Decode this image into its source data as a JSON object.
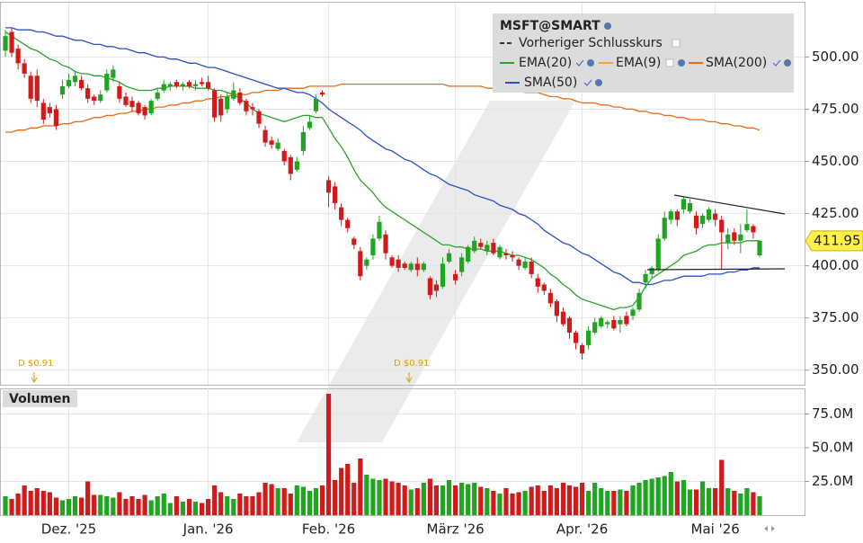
{
  "chart_data": {
    "type": "candlestick",
    "legend_title": "MSFT@SMART",
    "up_color": "#1fa51f",
    "down_color": "#cf1b1b",
    "legend_items": [
      {
        "name": "Vorheriger Schlusskurs",
        "color": "#333333"
      },
      {
        "name": "EMA(9)",
        "color": "#f2a43a"
      }
    ],
    "annotations": [
      "D $0.91",
      "D $0.91"
    ],
    "categories": [
      null,
      null,
      null,
      null,
      null,
      null,
      null,
      null,
      null,
      null,
      "Dez. '25",
      null,
      null,
      null,
      null,
      null,
      null,
      null,
      null,
      null,
      null,
      null,
      null,
      null,
      null,
      null,
      null,
      null,
      null,
      null,
      null,
      null,
      "Jan. '26",
      null,
      null,
      null,
      null,
      null,
      null,
      null,
      null,
      null,
      null,
      null,
      null,
      null,
      null,
      null,
      null,
      null,
      null,
      "Feb. '26",
      null,
      null,
      null,
      null,
      null,
      null,
      null,
      null,
      null,
      null,
      null,
      null,
      null,
      null,
      null,
      null,
      null,
      null,
      null,
      "März '26",
      null,
      null,
      null,
      null,
      null,
      null,
      null,
      null,
      null,
      null,
      null,
      null,
      null,
      null,
      null,
      null,
      null,
      null,
      null,
      "Apr. '26",
      null,
      null,
      null,
      null,
      null,
      null,
      null,
      null,
      null,
      null,
      null,
      null,
      null,
      null,
      null,
      null,
      null,
      null,
      null,
      null,
      "Mai '26",
      null,
      null,
      null,
      null,
      null,
      null,
      null
    ],
    "open": [
      503,
      512,
      504,
      497,
      491,
      491,
      478,
      476,
      475,
      482,
      486,
      488,
      489,
      485,
      481,
      479,
      484,
      490,
      486,
      481,
      479,
      478,
      476,
      473,
      480,
      484,
      486,
      488,
      486,
      488,
      486,
      488,
      488,
      484,
      480,
      475,
      480,
      483,
      479,
      476,
      474,
      465,
      460,
      456,
      455,
      452,
      446,
      455,
      466,
      474,
      483,
      441,
      438,
      428,
      422,
      413,
      407,
      400,
      405,
      413,
      415,
      404,
      403,
      401,
      398,
      401,
      398,
      394,
      391,
      390,
      402,
      396,
      397,
      402,
      407,
      411,
      407,
      411,
      404,
      406,
      405,
      403,
      399,
      402,
      394,
      391,
      387,
      383,
      378,
      375,
      368,
      362,
      362,
      368,
      371,
      372,
      374,
      372,
      376,
      376,
      379,
      392,
      396,
      398,
      413,
      422,
      426,
      427,
      426,
      424,
      420,
      422,
      425,
      422,
      411,
      416,
      412,
      417,
      419,
      405
    ],
    "high": [
      513,
      514,
      506,
      499,
      493,
      494,
      480,
      478,
      477,
      489,
      492,
      493,
      491,
      487,
      482,
      484,
      494,
      496,
      488,
      483,
      481,
      479,
      477,
      480,
      485,
      489,
      488,
      489,
      488,
      489,
      489,
      490,
      491,
      485,
      482,
      483,
      488,
      485,
      480,
      478,
      475,
      467,
      462,
      461,
      456,
      453,
      452,
      467,
      472,
      482,
      484,
      443,
      440,
      430,
      423,
      414,
      409,
      404,
      415,
      424,
      417,
      405,
      405,
      402,
      402,
      404,
      402,
      395,
      393,
      404,
      408,
      398,
      406,
      410,
      414,
      413,
      412,
      413,
      410,
      408,
      407,
      404,
      404,
      404,
      396,
      392,
      389,
      384,
      380,
      376,
      369,
      363,
      371,
      375,
      376,
      374,
      376,
      376,
      378,
      380,
      389,
      398,
      400,
      415,
      426,
      427,
      427,
      433,
      432,
      426,
      425,
      428,
      427,
      424,
      418,
      418,
      420,
      427,
      420,
      412
    ],
    "low": [
      500,
      500,
      494,
      490,
      478,
      476,
      468,
      471,
      465,
      480,
      485,
      486,
      484,
      478,
      477,
      478,
      483,
      488,
      478,
      476,
      474,
      472,
      470,
      472,
      479,
      483,
      484,
      485,
      484,
      485,
      484,
      486,
      484,
      469,
      469,
      473,
      479,
      477,
      472,
      472,
      466,
      457,
      456,
      455,
      448,
      441,
      445,
      453,
      465,
      473,
      481,
      428,
      427,
      419,
      416,
      408,
      393,
      398,
      403,
      412,
      403,
      399,
      397,
      398,
      397,
      395,
      397,
      384,
      385,
      389,
      401,
      391,
      395,
      401,
      406,
      408,
      405,
      405,
      403,
      403,
      402,
      398,
      398,
      394,
      387,
      386,
      380,
      373,
      371,
      365,
      360,
      355,
      360,
      367,
      370,
      370,
      369,
      368,
      371,
      374,
      378,
      389,
      394,
      397,
      412,
      420,
      419,
      425,
      425,
      415,
      418,
      421,
      419,
      398,
      408,
      410,
      406,
      416,
      413,
      404
    ],
    "close": [
      510,
      502,
      497,
      492,
      480,
      479,
      470,
      473,
      467,
      486,
      489,
      491,
      485,
      480,
      479,
      482,
      492,
      494,
      480,
      477,
      476,
      473,
      472,
      479,
      483,
      487,
      487,
      486,
      487,
      486,
      487,
      487,
      485,
      471,
      472,
      481,
      484,
      478,
      474,
      475,
      468,
      459,
      458,
      459,
      450,
      444,
      450,
      464,
      469,
      480,
      482,
      435,
      430,
      422,
      418,
      410,
      395,
      403,
      413,
      421,
      406,
      400,
      399,
      399,
      401,
      398,
      401,
      386,
      388,
      401,
      406,
      393,
      404,
      409,
      412,
      409,
      410,
      406,
      409,
      405,
      404,
      400,
      402,
      396,
      390,
      388,
      382,
      376,
      372,
      368,
      363,
      358,
      369,
      373,
      375,
      373,
      370,
      374,
      372,
      379,
      387,
      396,
      399,
      413,
      423,
      426,
      422,
      432,
      430,
      418,
      424,
      427,
      422,
      416,
      415,
      412,
      415,
      420,
      416,
      411.95
    ],
    "series": [
      {
        "name": "EMA(20)",
        "color": "#2aa52a",
        "values": [
          512,
          510,
          508,
          506,
          504,
          503,
          501,
          499,
          498,
          496,
          495,
          493,
          492,
          492,
          491,
          491,
          490,
          489,
          488,
          486,
          485,
          484,
          484,
          484,
          485,
          485,
          486,
          486,
          486,
          486,
          485,
          485,
          485,
          484,
          484,
          483,
          482,
          480,
          478,
          475,
          473,
          472,
          471,
          470,
          469,
          470,
          471,
          472,
          472,
          471,
          471,
          466,
          461,
          457,
          452,
          446,
          441,
          438,
          435,
          431,
          428,
          426,
          424,
          422,
          420,
          418,
          416,
          414,
          412,
          410,
          410,
          409,
          409,
          408,
          408,
          408,
          407,
          407,
          407,
          406,
          405,
          405,
          404,
          403,
          401,
          399,
          396,
          394,
          391,
          389,
          386,
          384,
          383,
          382,
          381,
          380,
          379,
          380,
          380,
          381,
          385,
          390,
          394,
          396,
          398,
          400,
          402,
          405,
          406,
          407,
          409,
          410,
          410,
          411,
          411,
          411,
          411,
          412,
          412,
          412
        ]
      },
      {
        "name": "SMA(200)",
        "color": "#ee6a12",
        "values": [
          464,
          464,
          465,
          465,
          466,
          466,
          467,
          467,
          467,
          468,
          468,
          469,
          469,
          470,
          471,
          471,
          472,
          472,
          473,
          473,
          474,
          474,
          475,
          475,
          476,
          476,
          477,
          477,
          478,
          478,
          479,
          479,
          480,
          480,
          481,
          481,
          482,
          482,
          482,
          483,
          483,
          484,
          484,
          484,
          485,
          485,
          485,
          485,
          486,
          486,
          486,
          486,
          486,
          487,
          487,
          487,
          487,
          487,
          487,
          487,
          487,
          487,
          487,
          487,
          487,
          487,
          487,
          487,
          487,
          487,
          486,
          486,
          486,
          486,
          486,
          486,
          485,
          485,
          485,
          484,
          484,
          484,
          483,
          483,
          483,
          482,
          481,
          481,
          480,
          480,
          479,
          478,
          478,
          478,
          477,
          477,
          476,
          476,
          475,
          475,
          474,
          474,
          473,
          473,
          472,
          472,
          471,
          471,
          470,
          470,
          470,
          469,
          469,
          468,
          468,
          467,
          467,
          466,
          466,
          465
        ]
      },
      {
        "name": "SMA(50)",
        "color": "#2a4fc8",
        "values": [
          514,
          514,
          513,
          513,
          513,
          512,
          512,
          511,
          510,
          510,
          509,
          508,
          508,
          507,
          506,
          506,
          505,
          505,
          504,
          504,
          503,
          502,
          502,
          501,
          500,
          500,
          499,
          499,
          498,
          497,
          497,
          496,
          495,
          495,
          494,
          493,
          492,
          491,
          490,
          489,
          488,
          487,
          486,
          485,
          485,
          484,
          483,
          483,
          482,
          480,
          478,
          475,
          473,
          471,
          469,
          467,
          465,
          462,
          460,
          458,
          456,
          455,
          453,
          451,
          450,
          448,
          446,
          444,
          443,
          441,
          439,
          438,
          437,
          436,
          434,
          433,
          432,
          431,
          429,
          428,
          427,
          425,
          424,
          422,
          420,
          417,
          415,
          413,
          411,
          410,
          408,
          406,
          405,
          403,
          401,
          399,
          397,
          396,
          394,
          392,
          392,
          391,
          391,
          392,
          393,
          393,
          394,
          395,
          395,
          395,
          395,
          396,
          396,
          396,
          397,
          397,
          398,
          398,
          399,
          399
        ]
      }
    ],
    "ylim": [
      343,
      526
    ],
    "yticks": [
      {
        "value": 350,
        "label": "350.00"
      },
      {
        "value": 375,
        "label": "375.00"
      },
      {
        "value": 400,
        "label": "400.00"
      },
      {
        "value": 425,
        "label": "425.00"
      },
      {
        "value": 450,
        "label": "450.00"
      },
      {
        "value": 475,
        "label": "475.00"
      },
      {
        "value": 500,
        "label": "500.00"
      }
    ],
    "grid": true,
    "volume": {
      "title": "Volumen",
      "ylim": [
        0,
        94
      ],
      "yticks": [
        {
          "value": 25,
          "label": "25.0M"
        },
        {
          "value": 50,
          "label": "50.0M"
        },
        {
          "value": 75,
          "label": "75.0M"
        }
      ],
      "values": [
        14,
        12,
        16,
        22,
        18,
        20,
        18,
        17,
        13,
        11,
        12,
        14,
        13,
        25,
        15,
        15,
        14,
        13,
        17,
        12,
        14,
        12,
        15,
        11,
        14,
        16,
        9,
        14,
        10,
        12,
        10,
        9,
        12,
        22,
        17,
        14,
        12,
        16,
        14,
        14,
        17,
        24,
        23,
        20,
        20,
        16,
        22,
        21,
        18,
        20,
        22,
        90,
        26,
        35,
        38,
        24,
        42,
        30,
        27,
        26,
        27,
        25,
        24,
        22,
        19,
        20,
        24,
        27,
        22,
        22,
        26,
        22,
        24,
        23,
        24,
        21,
        20,
        18,
        16,
        20,
        16,
        17,
        18,
        21,
        22,
        18,
        22,
        20,
        24,
        22,
        21,
        24,
        18,
        24,
        20,
        18,
        18,
        19,
        18,
        22,
        24,
        26,
        27,
        28,
        29,
        32,
        25,
        26,
        19,
        19,
        25,
        20,
        20,
        41,
        20,
        18,
        16,
        20,
        17,
        14
      ]
    }
  }
}
